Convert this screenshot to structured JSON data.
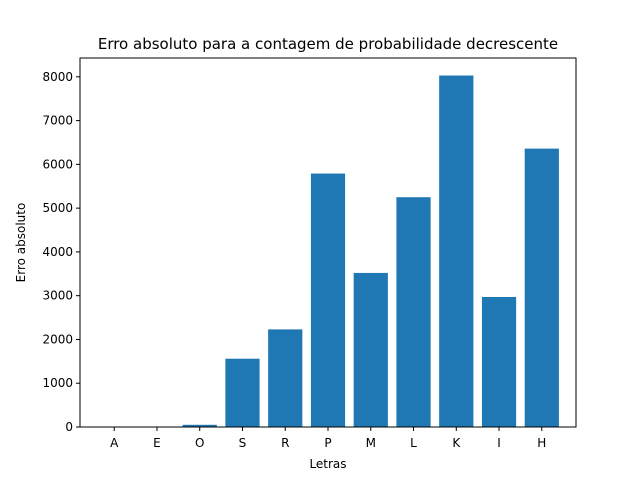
{
  "chart_data": {
    "type": "bar",
    "title": "Erro absoluto para a contagem de probabilidade decrescente",
    "xlabel": "Letras",
    "ylabel": "Erro absoluto",
    "categories": [
      "A",
      "E",
      "O",
      "S",
      "R",
      "P",
      "M",
      "L",
      "K",
      "I",
      "H"
    ],
    "values": [
      0,
      0,
      50,
      1560,
      2230,
      5790,
      3520,
      5250,
      8030,
      2970,
      6360
    ],
    "ylim": [
      0,
      8430
    ],
    "yticks": [
      0,
      1000,
      2000,
      3000,
      4000,
      5000,
      6000,
      7000,
      8000
    ],
    "bar_color": "#1f77b4",
    "grid": false,
    "legend": false
  }
}
